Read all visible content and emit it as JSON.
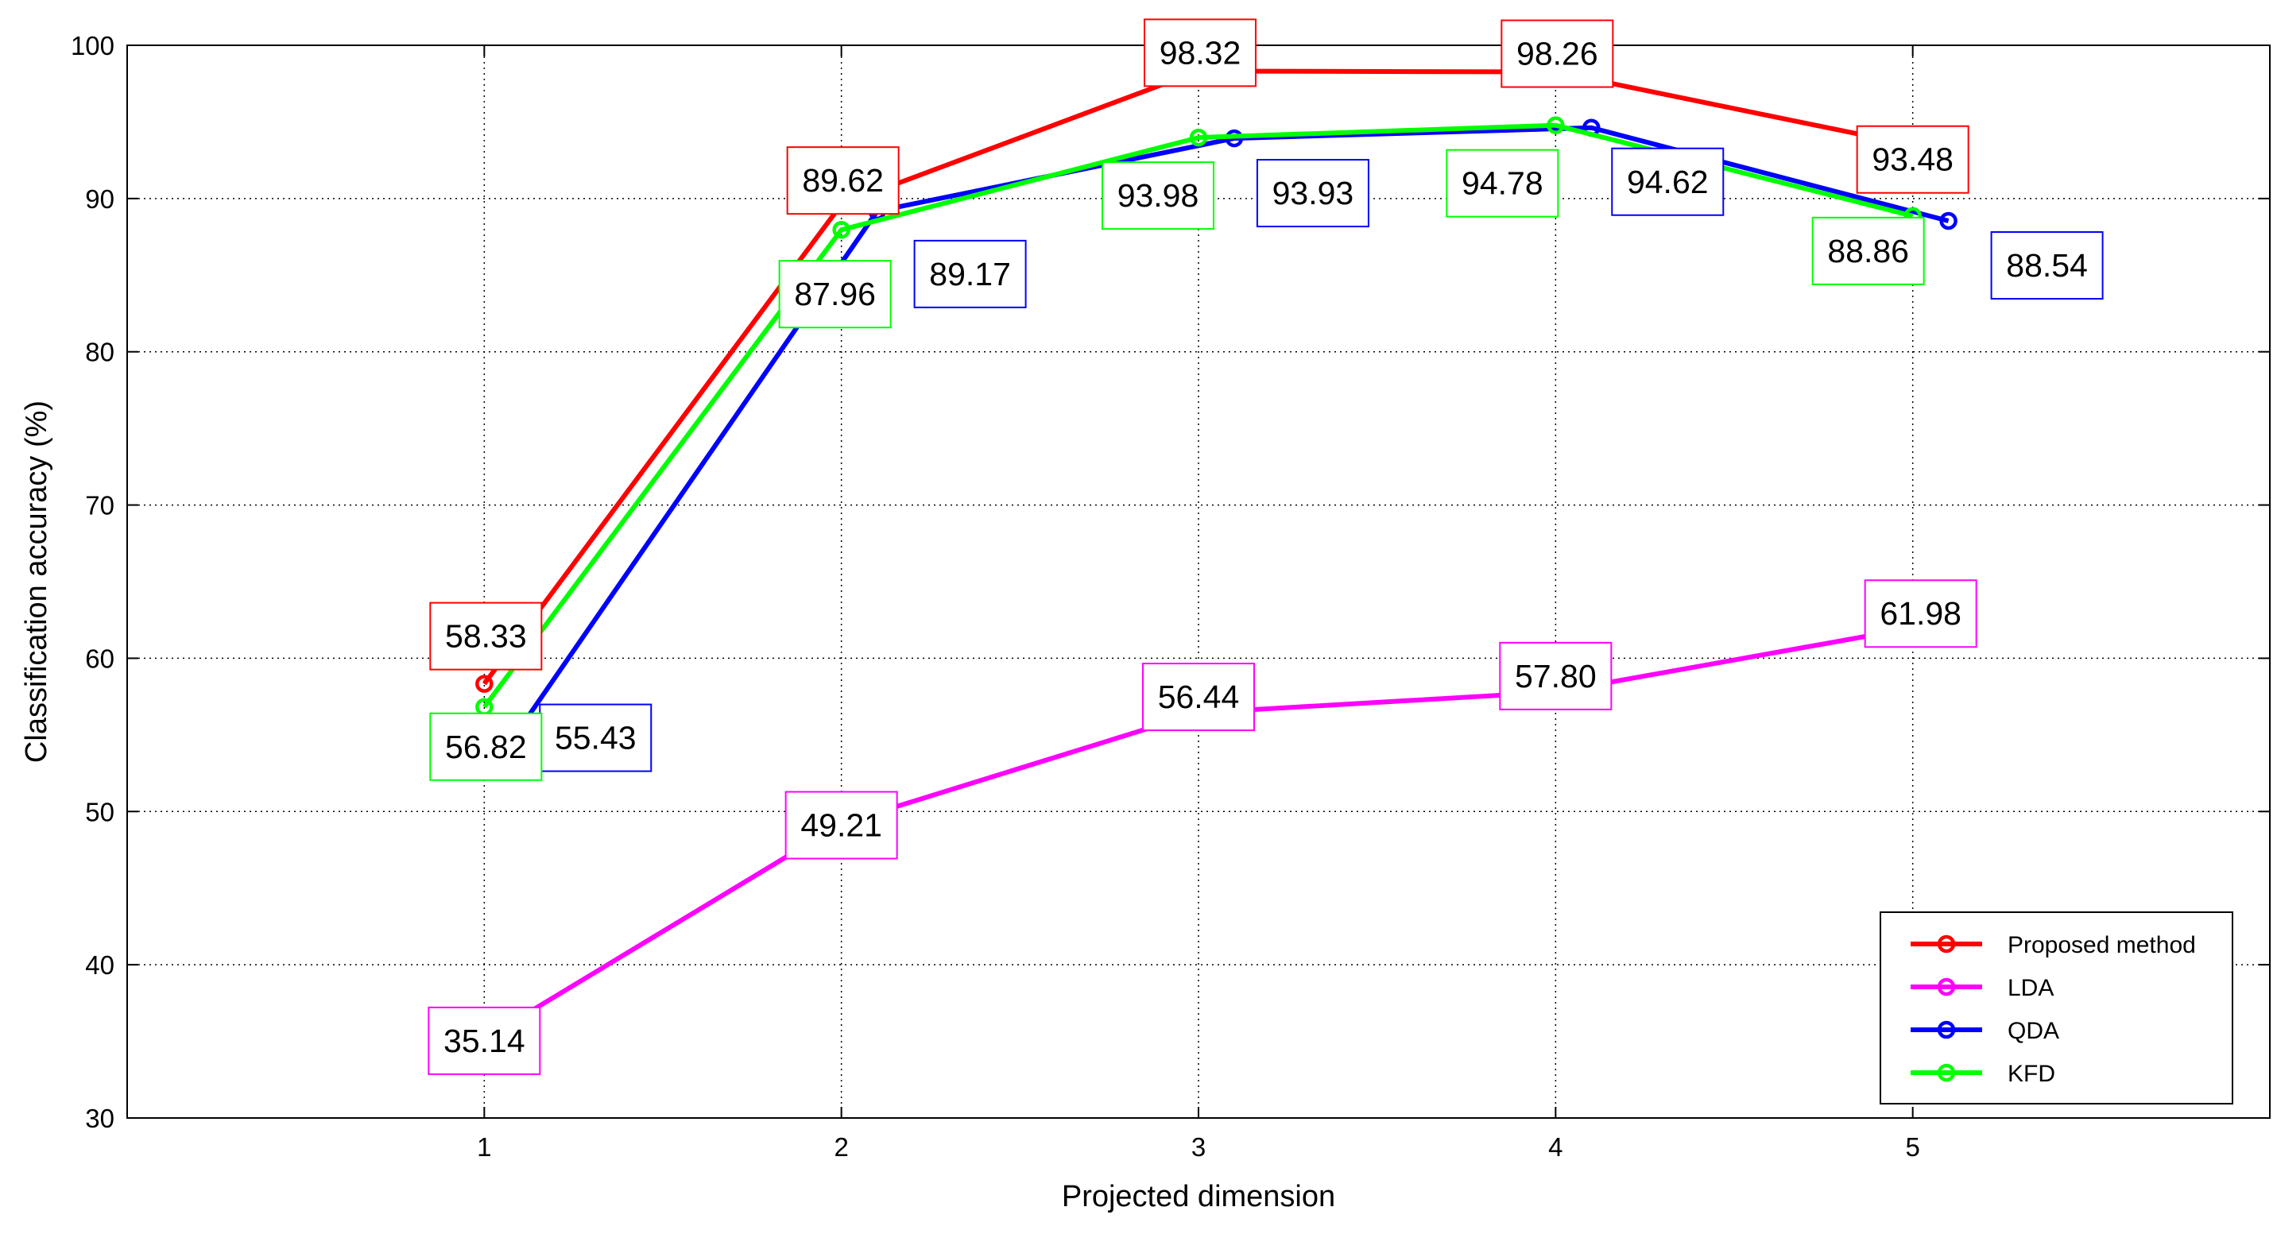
{
  "chart_data": {
    "type": "line",
    "xlabel": "Projected dimension",
    "ylabel": "Classification accuracy (%)",
    "x": [
      1,
      2,
      3,
      4,
      5
    ],
    "xticks": [
      "1",
      "2",
      "3",
      "4",
      "5"
    ],
    "yticks": [
      "30",
      "40",
      "50",
      "60",
      "70",
      "80",
      "90",
      "100"
    ],
    "xlim": [
      0,
      6
    ],
    "ylim": [
      30,
      100
    ],
    "grid": true,
    "legend_position": "bottom-right",
    "series": [
      {
        "name": "Proposed method",
        "color": "#ff0000",
        "x": [
          1,
          2,
          3,
          4,
          5
        ],
        "values": [
          58.33,
          89.62,
          98.32,
          98.26,
          93.48
        ],
        "labels": [
          "58.33",
          "89.62",
          "98.32",
          "98.26",
          "93.48"
        ]
      },
      {
        "name": "LDA",
        "color": "#ff00ff",
        "x": [
          1,
          2,
          3,
          4,
          5
        ],
        "values": [
          35.14,
          49.21,
          56.44,
          57.8,
          61.98
        ],
        "labels": [
          "35.14",
          "49.21",
          "56.44",
          "57.80",
          "61.98"
        ]
      },
      {
        "name": "QDA",
        "color": "#0000ff",
        "x": [
          1.1,
          2.1,
          3.1,
          4.1,
          5.1
        ],
        "values": [
          55.43,
          89.17,
          93.93,
          94.62,
          88.54
        ],
        "labels": [
          "55.43",
          "89.17",
          "93.93",
          "94.62",
          "88.54"
        ]
      },
      {
        "name": "KFD",
        "color": "#00ff00",
        "x": [
          1,
          2,
          3,
          4,
          5
        ],
        "values": [
          56.82,
          87.96,
          93.98,
          94.78,
          88.86
        ],
        "labels": [
          "56.82",
          "87.96",
          "93.98",
          "94.78",
          "88.86"
        ]
      }
    ]
  }
}
